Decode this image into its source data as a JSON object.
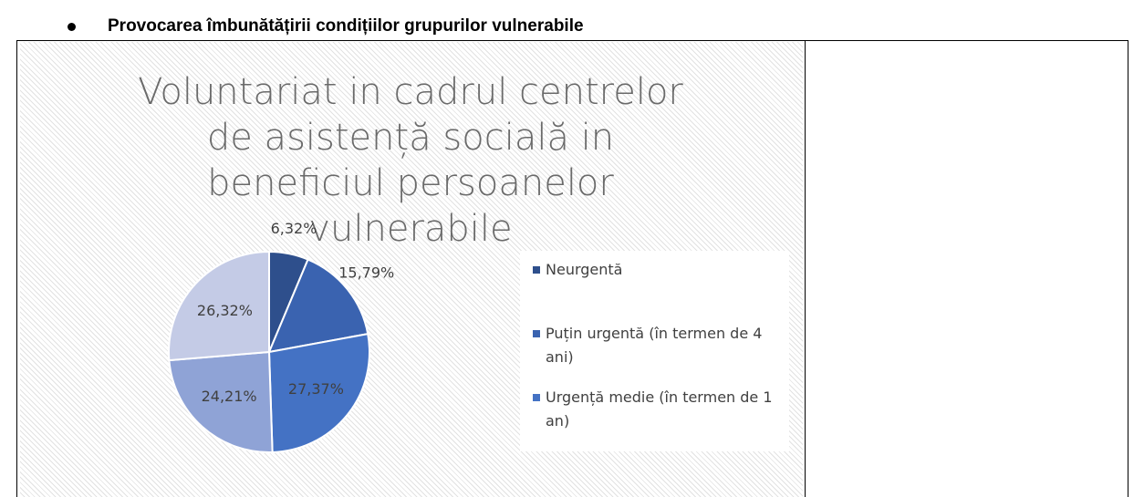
{
  "heading": "Provocarea îmbunătățirii condițiilor grupurilor vulnerabile",
  "chart_data": {
    "type": "pie",
    "title": "Voluntariat in cadrul centrelor de asistență socială in beneficiul persoanelor vulnerabile",
    "categories": [
      "Neurgentă",
      "Puțin urgentă (în termen de 4 ani)",
      "Urgență medie (în termen de 1 an)",
      null,
      null
    ],
    "values": [
      6.32,
      15.79,
      27.37,
      24.21,
      26.32
    ],
    "value_labels": [
      "6,32%",
      "15,79%",
      "27,37%",
      "24,21%",
      "26,32%"
    ],
    "colors": [
      "#2e4f8c",
      "#3a63b0",
      "#4472c4",
      "#8fa3d6",
      "#c4cbe6"
    ],
    "legend": "right"
  }
}
